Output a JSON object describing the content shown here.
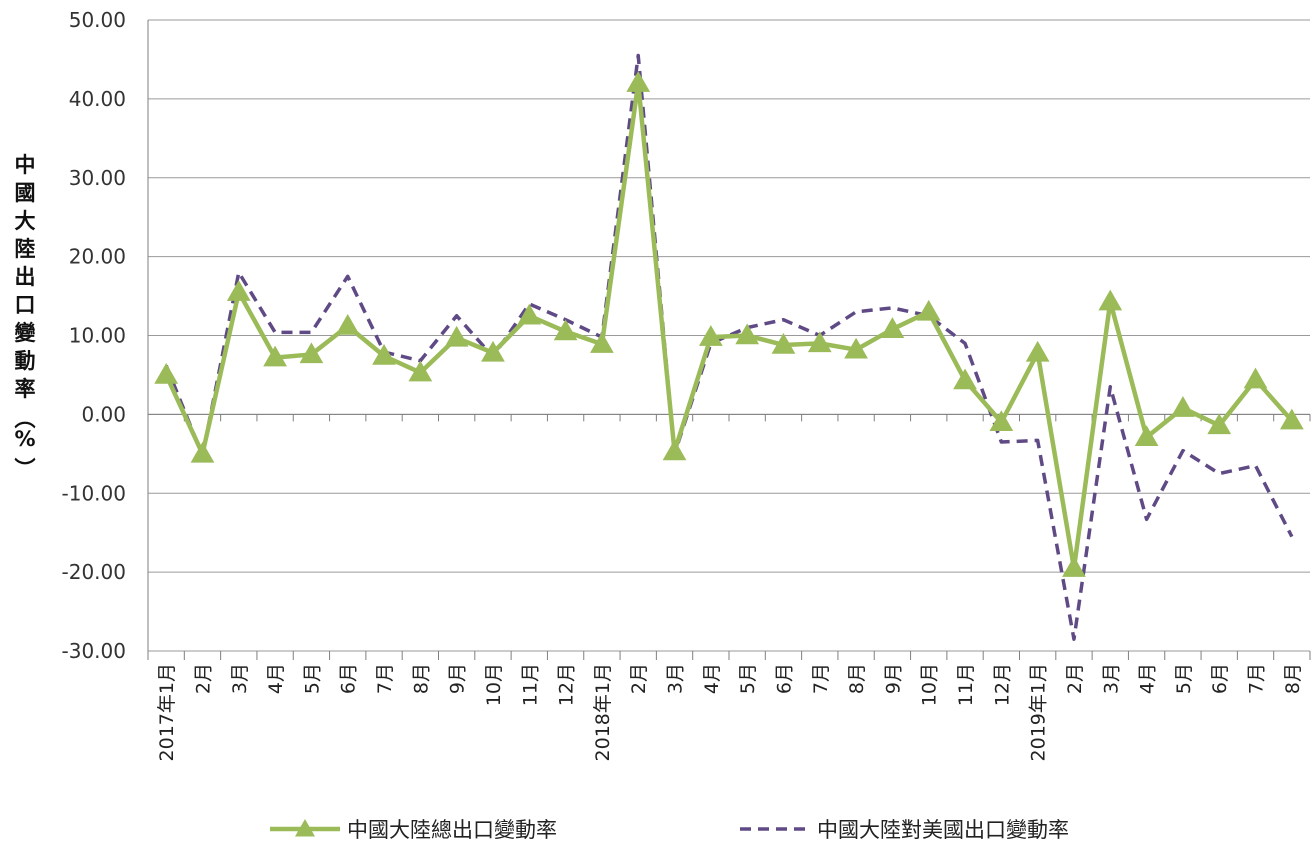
{
  "chart_data": {
    "type": "line",
    "ylabel": "中國大陸出口變動率(%)",
    "ylim": [
      -30,
      50
    ],
    "yticks": [
      "50.00",
      "40.00",
      "30.00",
      "20.00",
      "10.00",
      "0.00",
      "-10.00",
      "-20.00",
      "-30.00"
    ],
    "categories": [
      "2017年1月",
      "2月",
      "3月",
      "4月",
      "5月",
      "6月",
      "7月",
      "8月",
      "9月",
      "10月",
      "11月",
      "12月",
      "2018年1月",
      "2月",
      "3月",
      "4月",
      "5月",
      "6月",
      "7月",
      "8月",
      "9月",
      "10月",
      "11月",
      "12月",
      "2019年1月",
      "2月",
      "3月",
      "4月",
      "5月",
      "6月",
      "7月",
      "8月"
    ],
    "grid": true,
    "legend": "bottom",
    "series": [
      {
        "name": "中國大陸總出口變動率",
        "color": "#9BBB59",
        "style": "solid-triangle",
        "values": [
          5.0,
          -5.0,
          15.5,
          7.2,
          7.6,
          11.2,
          7.4,
          5.3,
          9.7,
          7.8,
          12.5,
          10.5,
          8.9,
          42.0,
          -4.7,
          9.8,
          10.0,
          8.8,
          9.0,
          8.2,
          10.8,
          13.0,
          4.3,
          -1.0,
          7.8,
          -19.5,
          14.3,
          -2.9,
          0.8,
          -1.4,
          4.4,
          -0.8
        ]
      },
      {
        "name": "中國大陸對美國出口變動率",
        "color": "#5F4A86",
        "style": "dashed",
        "values": [
          6.2,
          -5.2,
          18.0,
          10.4,
          10.4,
          17.5,
          7.9,
          6.8,
          12.5,
          7.3,
          14.0,
          12.0,
          9.8,
          45.5,
          -5.0,
          9.0,
          11.0,
          12.0,
          10.0,
          13.0,
          13.5,
          12.5,
          9.0,
          -3.5,
          -3.3,
          -28.5,
          3.5,
          -13.3,
          -4.6,
          -7.5,
          -6.5,
          -15.5
        ]
      }
    ]
  }
}
